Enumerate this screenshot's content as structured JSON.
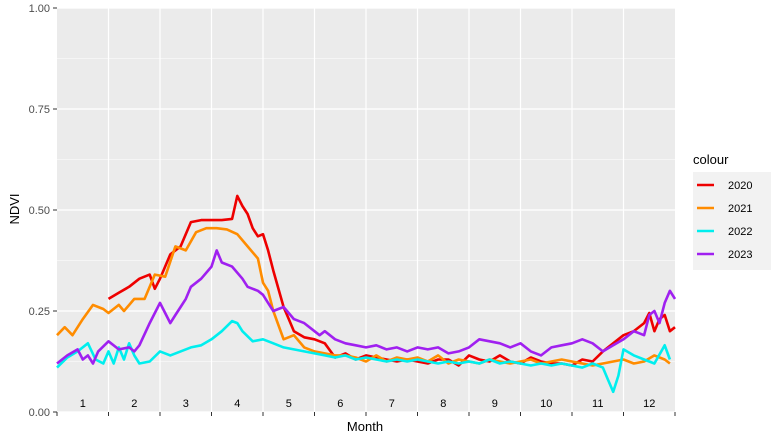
{
  "chart_data": {
    "type": "line",
    "xlabel": "Month",
    "ylabel": "NDVI",
    "xlim": [
      0,
      12
    ],
    "ylim": [
      0,
      1
    ],
    "yticks": [
      "0.00",
      "0.25",
      "0.50",
      "0.75",
      "1.00"
    ],
    "month_labels": [
      "1",
      "2",
      "3",
      "4",
      "5",
      "6",
      "7",
      "8",
      "9",
      "10",
      "11",
      "12"
    ],
    "legend_title": "colour",
    "legend_position": "right",
    "grid": true,
    "series": [
      {
        "name": "2020",
        "color": "#ee0000",
        "x": [
          1.0,
          1.2,
          1.4,
          1.6,
          1.8,
          1.9,
          2.0,
          2.2,
          2.4,
          2.6,
          2.8,
          3.0,
          3.2,
          3.4,
          3.5,
          3.6,
          3.7,
          3.8,
          3.9,
          4.0,
          4.1,
          4.2,
          4.4,
          4.5,
          4.6,
          4.8,
          5.0,
          5.2,
          5.4,
          5.6,
          5.8,
          6.0,
          6.2,
          6.4,
          6.6,
          6.8,
          7.0,
          7.2,
          7.4,
          7.6,
          7.8,
          8.0,
          8.2,
          8.4,
          8.6,
          8.8,
          9.0,
          9.2,
          9.4,
          9.6,
          9.8,
          10.0,
          10.2,
          10.4,
          10.6,
          10.8,
          11.0,
          11.2,
          11.4,
          11.5,
          11.6,
          11.7,
          11.8,
          11.9,
          12.0
        ],
        "y": [
          0.28,
          0.295,
          0.31,
          0.33,
          0.34,
          0.305,
          0.33,
          0.39,
          0.41,
          0.47,
          0.475,
          0.475,
          0.475,
          0.478,
          0.535,
          0.51,
          0.49,
          0.455,
          0.435,
          0.44,
          0.4,
          0.35,
          0.26,
          0.23,
          0.2,
          0.185,
          0.18,
          0.17,
          0.135,
          0.145,
          0.13,
          0.14,
          0.135,
          0.13,
          0.125,
          0.13,
          0.125,
          0.12,
          0.13,
          0.13,
          0.115,
          0.14,
          0.13,
          0.125,
          0.14,
          0.125,
          0.12,
          0.135,
          0.125,
          0.12,
          0.12,
          0.115,
          0.13,
          0.125,
          0.15,
          0.17,
          0.19,
          0.2,
          0.22,
          0.245,
          0.2,
          0.23,
          0.24,
          0.2,
          0.21
        ]
      },
      {
        "name": "2021",
        "color": "#ff8c00",
        "x": [
          0.0,
          0.15,
          0.3,
          0.5,
          0.7,
          0.9,
          1.0,
          1.2,
          1.3,
          1.5,
          1.7,
          1.9,
          2.1,
          2.3,
          2.5,
          2.7,
          2.9,
          3.1,
          3.3,
          3.5,
          3.7,
          3.9,
          4.0,
          4.1,
          4.2,
          4.4,
          4.6,
          4.8,
          5.0,
          5.2,
          5.4,
          5.6,
          5.8,
          6.0,
          6.2,
          6.4,
          6.6,
          6.8,
          7.0,
          7.2,
          7.4,
          7.6,
          7.8,
          8.0,
          8.2,
          8.4,
          8.6,
          8.8,
          9.0,
          9.2,
          9.4,
          9.6,
          9.8,
          10.0,
          10.2,
          10.4,
          10.6,
          10.8,
          11.0,
          11.2,
          11.4,
          11.6,
          11.8,
          11.9
        ],
        "y": [
          0.19,
          0.21,
          0.19,
          0.23,
          0.265,
          0.255,
          0.245,
          0.265,
          0.25,
          0.28,
          0.28,
          0.34,
          0.335,
          0.41,
          0.4,
          0.445,
          0.455,
          0.455,
          0.452,
          0.44,
          0.41,
          0.38,
          0.32,
          0.3,
          0.25,
          0.18,
          0.19,
          0.16,
          0.15,
          0.145,
          0.14,
          0.14,
          0.135,
          0.125,
          0.14,
          0.125,
          0.135,
          0.13,
          0.135,
          0.125,
          0.14,
          0.12,
          0.13,
          0.125,
          0.12,
          0.13,
          0.125,
          0.12,
          0.125,
          0.13,
          0.12,
          0.125,
          0.13,
          0.125,
          0.12,
          0.115,
          0.12,
          0.125,
          0.13,
          0.12,
          0.125,
          0.14,
          0.13,
          0.12
        ]
      },
      {
        "name": "2022",
        "color": "#00eeee",
        "x": [
          0.0,
          0.2,
          0.4,
          0.6,
          0.75,
          0.9,
          1.0,
          1.1,
          1.2,
          1.3,
          1.4,
          1.5,
          1.6,
          1.8,
          2.0,
          2.2,
          2.4,
          2.6,
          2.8,
          3.0,
          3.2,
          3.4,
          3.5,
          3.6,
          3.8,
          4.0,
          4.2,
          4.4,
          4.6,
          4.8,
          5.0,
          5.2,
          5.4,
          5.6,
          5.8,
          6.0,
          6.2,
          6.4,
          6.6,
          6.8,
          7.0,
          7.2,
          7.4,
          7.6,
          7.8,
          8.0,
          8.2,
          8.4,
          8.6,
          8.8,
          9.0,
          9.2,
          9.4,
          9.6,
          9.8,
          10.0,
          10.2,
          10.4,
          10.6,
          10.7,
          10.8,
          10.9,
          11.0,
          11.2,
          11.4,
          11.6,
          11.8,
          11.9
        ],
        "y": [
          0.11,
          0.135,
          0.15,
          0.17,
          0.13,
          0.12,
          0.15,
          0.12,
          0.16,
          0.13,
          0.17,
          0.14,
          0.12,
          0.125,
          0.15,
          0.14,
          0.15,
          0.16,
          0.165,
          0.18,
          0.2,
          0.225,
          0.22,
          0.2,
          0.175,
          0.18,
          0.17,
          0.16,
          0.155,
          0.15,
          0.145,
          0.14,
          0.135,
          0.14,
          0.13,
          0.135,
          0.13,
          0.125,
          0.13,
          0.125,
          0.13,
          0.125,
          0.12,
          0.125,
          0.12,
          0.125,
          0.12,
          0.13,
          0.12,
          0.125,
          0.12,
          0.115,
          0.12,
          0.115,
          0.12,
          0.115,
          0.11,
          0.12,
          0.11,
          0.08,
          0.05,
          0.09,
          0.155,
          0.14,
          0.13,
          0.12,
          0.165,
          0.13
        ]
      },
      {
        "name": "2023",
        "color": "#a020f0",
        "x": [
          0.0,
          0.2,
          0.4,
          0.5,
          0.6,
          0.7,
          0.8,
          1.0,
          1.2,
          1.4,
          1.5,
          1.6,
          1.8,
          2.0,
          2.2,
          2.3,
          2.4,
          2.5,
          2.6,
          2.8,
          3.0,
          3.1,
          3.2,
          3.4,
          3.6,
          3.7,
          3.8,
          3.9,
          4.0,
          4.1,
          4.2,
          4.4,
          4.6,
          4.8,
          5.0,
          5.1,
          5.2,
          5.4,
          5.6,
          5.8,
          6.0,
          6.2,
          6.4,
          6.6,
          6.8,
          7.0,
          7.2,
          7.4,
          7.6,
          7.8,
          8.0,
          8.2,
          8.4,
          8.6,
          8.8,
          9.0,
          9.2,
          9.4,
          9.6,
          9.8,
          10.0,
          10.2,
          10.4,
          10.6,
          10.8,
          11.0,
          11.2,
          11.4,
          11.5,
          11.6,
          11.7,
          11.8,
          11.9,
          12.0
        ],
        "y": [
          0.12,
          0.14,
          0.155,
          0.13,
          0.14,
          0.12,
          0.15,
          0.175,
          0.155,
          0.16,
          0.15,
          0.165,
          0.22,
          0.27,
          0.22,
          0.24,
          0.26,
          0.28,
          0.31,
          0.33,
          0.36,
          0.4,
          0.37,
          0.36,
          0.33,
          0.31,
          0.305,
          0.3,
          0.29,
          0.27,
          0.25,
          0.26,
          0.23,
          0.22,
          0.2,
          0.19,
          0.2,
          0.18,
          0.17,
          0.165,
          0.16,
          0.165,
          0.155,
          0.16,
          0.15,
          0.16,
          0.155,
          0.16,
          0.145,
          0.15,
          0.16,
          0.18,
          0.175,
          0.17,
          0.16,
          0.17,
          0.15,
          0.14,
          0.16,
          0.165,
          0.17,
          0.18,
          0.17,
          0.15,
          0.165,
          0.18,
          0.2,
          0.19,
          0.24,
          0.25,
          0.22,
          0.27,
          0.3,
          0.28
        ]
      }
    ]
  }
}
